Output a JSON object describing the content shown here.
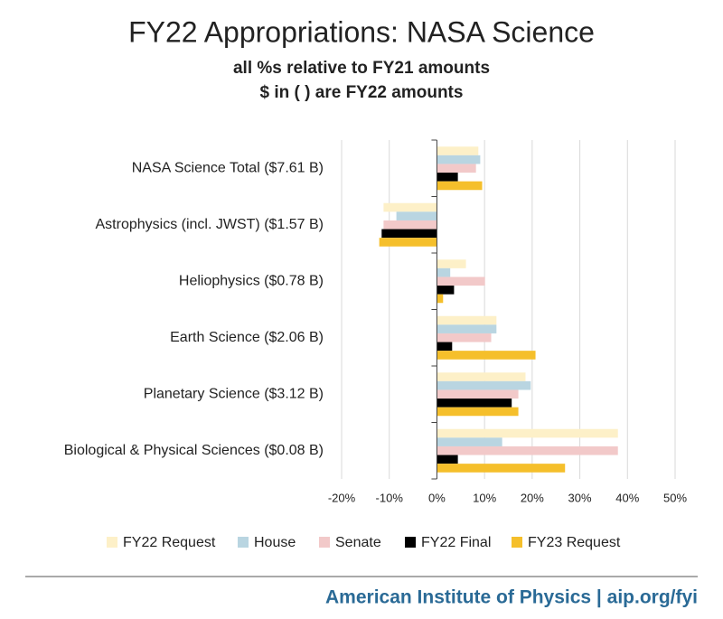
{
  "chart_data": {
    "type": "hbar",
    "title": "FY22 Appropriations: NASA Science",
    "subtitle": [
      "all %s relative to FY21 amounts",
      "$ in ( ) are FY22 amounts"
    ],
    "footer": "American Institute of Physics | aip.org/fyi",
    "categories": [
      "NASA Science Total ($7.61 B)",
      "Astrophysics (incl. JWST) ($1.57 B)",
      "Heliophysics ($0.78 B)",
      "Earth Science ($2.06 B)",
      "Planetary Science ($3.12 B)",
      "Biological & Physical Sciences ($0.08 B)"
    ],
    "series": [
      {
        "name": "FY22 Request",
        "color": "#fdf0c8",
        "values": [
          8.7,
          -11.2,
          6.1,
          12.5,
          18.6,
          38
        ]
      },
      {
        "name": "House",
        "color": "#b9d5e1",
        "values": [
          9.1,
          -8.5,
          2.8,
          12.5,
          19.7,
          13.7
        ]
      },
      {
        "name": "Senate",
        "color": "#f2c9c9",
        "values": [
          8.2,
          -11.2,
          10.1,
          11.4,
          17.1,
          38
        ]
      },
      {
        "name": "FY22 Final",
        "color": "#000000",
        "values": [
          4.4,
          -11.6,
          3.6,
          3.2,
          15.7,
          4.4
        ]
      },
      {
        "name": "FY23 Request",
        "color": "#f5bf2b",
        "values": [
          9.5,
          -12.1,
          1.3,
          20.7,
          17.1,
          26.9
        ]
      }
    ],
    "xlim": [
      -20,
      50
    ],
    "xticks": [
      {
        "value": -20,
        "label": "-20%"
      },
      {
        "value": -10,
        "label": "-10%"
      },
      {
        "value": 0,
        "label": "0%"
      },
      {
        "value": 10,
        "label": "10%"
      },
      {
        "value": 20,
        "label": "20%"
      },
      {
        "value": 30,
        "label": "30%"
      },
      {
        "value": 40,
        "label": "40%"
      },
      {
        "value": 50,
        "label": "50%"
      }
    ],
    "grid": true,
    "legend": "bottom"
  }
}
